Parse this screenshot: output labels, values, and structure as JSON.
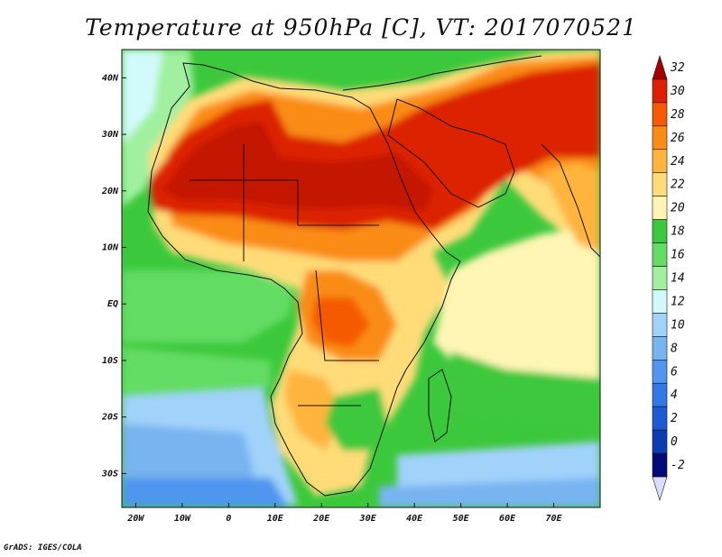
{
  "title": "Temperature at 950hPa [C], VT: 2017070521",
  "credit": "GrADS: IGES/COLA",
  "map": {
    "projection": "lat-lon",
    "lon_range": [
      -23,
      80
    ],
    "lat_range": [
      -36,
      45
    ],
    "lat_ticks": [
      {
        "value": 40,
        "label": "40N"
      },
      {
        "value": 30,
        "label": "30N"
      },
      {
        "value": 20,
        "label": "20N"
      },
      {
        "value": 10,
        "label": "10N"
      },
      {
        "value": 0,
        "label": "EQ"
      },
      {
        "value": -10,
        "label": "10S"
      },
      {
        "value": -20,
        "label": "20S"
      },
      {
        "value": -30,
        "label": "30S"
      }
    ],
    "lon_ticks": [
      {
        "value": -20,
        "label": "20W"
      },
      {
        "value": -10,
        "label": "10W"
      },
      {
        "value": 0,
        "label": "0"
      },
      {
        "value": 10,
        "label": "10E"
      },
      {
        "value": 20,
        "label": "20E"
      },
      {
        "value": 30,
        "label": "30E"
      },
      {
        "value": 40,
        "label": "40E"
      },
      {
        "value": 50,
        "label": "50E"
      },
      {
        "value": 60,
        "label": "60E"
      },
      {
        "value": 70,
        "label": "70E"
      }
    ]
  },
  "colorbar": {
    "levels": [
      "32",
      "30",
      "28",
      "26",
      "24",
      "22",
      "20",
      "18",
      "16",
      "14",
      "12",
      "10",
      "8",
      "6",
      "4",
      "2",
      "0",
      "-2"
    ],
    "colors": [
      "#a50000",
      "#dc2000",
      "#f55a00",
      "#fa8c14",
      "#ffb43c",
      "#ffdc78",
      "#fff5b4",
      "#3cc83c",
      "#64dc64",
      "#a0f0a0",
      "#d2fafa",
      "#a0d2fa",
      "#78b4f0",
      "#5096f0",
      "#3278e6",
      "#1e5ad2",
      "#0a3cb4",
      "#000a78",
      "#dcdcff"
    ]
  }
}
